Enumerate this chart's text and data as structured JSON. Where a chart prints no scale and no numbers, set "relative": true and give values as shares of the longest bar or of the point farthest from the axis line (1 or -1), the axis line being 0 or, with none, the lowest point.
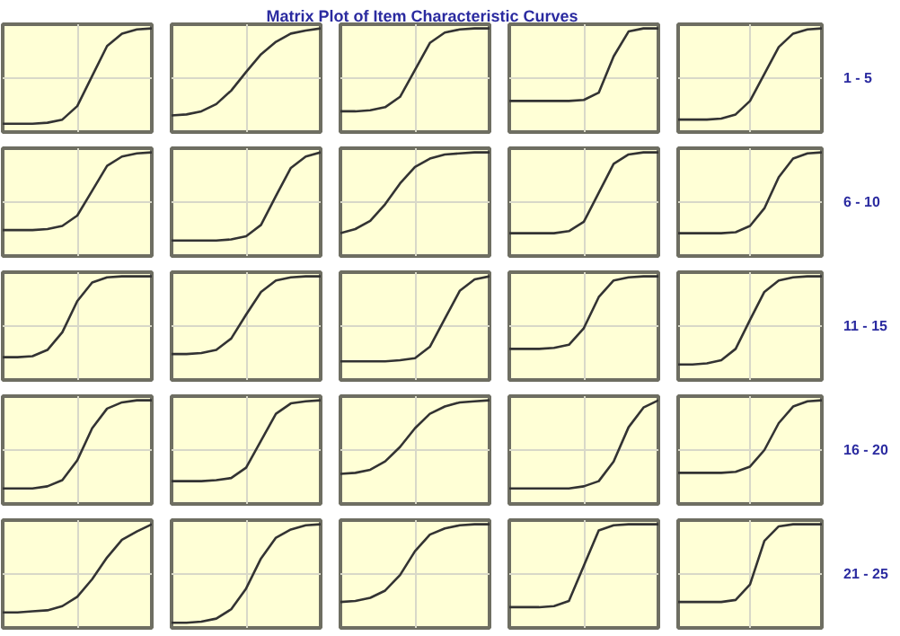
{
  "chart_data": [
    {
      "type": "line",
      "relative": true,
      "grid": true,
      "categories": [
        null,
        null,
        null,
        null,
        null,
        null,
        null,
        null,
        null,
        null,
        null
      ],
      "series": [
        {
          "color": "#333333",
          "values": [
            0.08,
            0.08,
            0.08,
            0.09,
            0.12,
            0.25,
            0.54,
            0.83,
            0.95,
            0.99,
            1
          ]
        }
      ]
    },
    {
      "type": "line",
      "relative": true,
      "grid": true,
      "categories": [
        null,
        null,
        null,
        null,
        null,
        null,
        null,
        null,
        null,
        null,
        null
      ],
      "series": [
        {
          "color": "#333333",
          "values": [
            0.16,
            0.17,
            0.2,
            0.27,
            0.4,
            0.58,
            0.75,
            0.87,
            0.95,
            0.98,
            1
          ]
        }
      ]
    },
    {
      "type": "line",
      "relative": true,
      "grid": true,
      "title": "Matrix Plot of Item Characteristic Curves",
      "categories": [
        null,
        null,
        null,
        null,
        null,
        null,
        null,
        null,
        null,
        null,
        null
      ],
      "series": [
        {
          "color": "#333333",
          "values": [
            0.2,
            0.2,
            0.21,
            0.24,
            0.34,
            0.6,
            0.86,
            0.96,
            0.99,
            1,
            1
          ]
        }
      ]
    },
    {
      "type": "line",
      "relative": true,
      "grid": true,
      "categories": [
        null,
        null,
        null,
        null,
        null,
        null,
        null,
        null,
        null,
        null,
        null
      ],
      "series": [
        {
          "color": "#333333",
          "values": [
            0.3,
            0.3,
            0.3,
            0.3,
            0.3,
            0.31,
            0.38,
            0.73,
            0.97,
            1,
            1
          ]
        }
      ]
    },
    {
      "type": "line",
      "relative": true,
      "grid": true,
      "annotations": [
        "1 - 5"
      ],
      "categories": [
        null,
        null,
        null,
        null,
        null,
        null,
        null,
        null,
        null,
        null,
        null
      ],
      "series": [
        {
          "color": "#333333",
          "values": [
            0.12,
            0.12,
            0.12,
            0.13,
            0.17,
            0.3,
            0.56,
            0.82,
            0.95,
            0.99,
            1
          ]
        }
      ]
    },
    {
      "type": "line",
      "relative": true,
      "grid": true,
      "categories": [
        null,
        null,
        null,
        null,
        null,
        null,
        null,
        null,
        null,
        null,
        null
      ],
      "series": [
        {
          "color": "#333333",
          "values": [
            0.25,
            0.25,
            0.25,
            0.26,
            0.29,
            0.39,
            0.63,
            0.87,
            0.96,
            0.99,
            1
          ]
        }
      ]
    },
    {
      "type": "line",
      "relative": true,
      "grid": true,
      "categories": [
        null,
        null,
        null,
        null,
        null,
        null,
        null,
        null,
        null,
        null,
        null
      ],
      "series": [
        {
          "color": "#333333",
          "values": [
            0.15,
            0.15,
            0.15,
            0.15,
            0.16,
            0.19,
            0.3,
            0.58,
            0.85,
            0.96,
            1
          ]
        }
      ]
    },
    {
      "type": "line",
      "relative": true,
      "grid": true,
      "categories": [
        null,
        null,
        null,
        null,
        null,
        null,
        null,
        null,
        null,
        null,
        null
      ],
      "series": [
        {
          "color": "#333333",
          "values": [
            0.22,
            0.26,
            0.34,
            0.5,
            0.7,
            0.86,
            0.94,
            0.98,
            0.99,
            1,
            1
          ]
        }
      ]
    },
    {
      "type": "line",
      "relative": true,
      "grid": true,
      "categories": [
        null,
        null,
        null,
        null,
        null,
        null,
        null,
        null,
        null,
        null,
        null
      ],
      "series": [
        {
          "color": "#333333",
          "values": [
            0.22,
            0.22,
            0.22,
            0.22,
            0.24,
            0.33,
            0.61,
            0.89,
            0.98,
            1,
            1
          ]
        }
      ]
    },
    {
      "type": "line",
      "relative": true,
      "grid": true,
      "annotations": [
        "6 - 10"
      ],
      "categories": [
        null,
        null,
        null,
        null,
        null,
        null,
        null,
        null,
        null,
        null,
        null
      ],
      "series": [
        {
          "color": "#333333",
          "values": [
            0.22,
            0.22,
            0.22,
            0.22,
            0.23,
            0.29,
            0.46,
            0.76,
            0.94,
            0.99,
            1
          ]
        }
      ]
    },
    {
      "type": "line",
      "relative": true,
      "grid": true,
      "categories": [
        null,
        null,
        null,
        null,
        null,
        null,
        null,
        null,
        null,
        null,
        null
      ],
      "series": [
        {
          "color": "#333333",
          "values": [
            0.22,
            0.22,
            0.23,
            0.29,
            0.46,
            0.76,
            0.94,
            0.99,
            1,
            1,
            1
          ]
        }
      ]
    },
    {
      "type": "line",
      "relative": true,
      "grid": true,
      "categories": [
        null,
        null,
        null,
        null,
        null,
        null,
        null,
        null,
        null,
        null,
        null
      ],
      "series": [
        {
          "color": "#333333",
          "values": [
            0.25,
            0.25,
            0.26,
            0.29,
            0.4,
            0.63,
            0.85,
            0.96,
            0.99,
            1,
            1
          ]
        }
      ]
    },
    {
      "type": "line",
      "relative": true,
      "grid": true,
      "categories": [
        null,
        null,
        null,
        null,
        null,
        null,
        null,
        null,
        null,
        null,
        null
      ],
      "series": [
        {
          "color": "#333333",
          "values": [
            0.18,
            0.18,
            0.18,
            0.18,
            0.19,
            0.21,
            0.32,
            0.59,
            0.86,
            0.97,
            1
          ]
        }
      ]
    },
    {
      "type": "line",
      "relative": true,
      "grid": true,
      "categories": [
        null,
        null,
        null,
        null,
        null,
        null,
        null,
        null,
        null,
        null,
        null
      ],
      "series": [
        {
          "color": "#333333",
          "values": [
            0.3,
            0.3,
            0.3,
            0.31,
            0.34,
            0.5,
            0.8,
            0.96,
            0.99,
            1,
            1
          ]
        }
      ]
    },
    {
      "type": "line",
      "relative": true,
      "grid": true,
      "annotations": [
        "11 - 15"
      ],
      "categories": [
        null,
        null,
        null,
        null,
        null,
        null,
        null,
        null,
        null,
        null,
        null
      ],
      "series": [
        {
          "color": "#333333",
          "values": [
            0.15,
            0.15,
            0.16,
            0.19,
            0.3,
            0.58,
            0.85,
            0.96,
            0.99,
            1,
            1
          ]
        }
      ]
    },
    {
      "type": "line",
      "relative": true,
      "grid": true,
      "categories": [
        null,
        null,
        null,
        null,
        null,
        null,
        null,
        null,
        null,
        null,
        null
      ],
      "series": [
        {
          "color": "#333333",
          "values": [
            0.15,
            0.15,
            0.15,
            0.17,
            0.23,
            0.42,
            0.73,
            0.92,
            0.98,
            1,
            1
          ]
        }
      ]
    },
    {
      "type": "line",
      "relative": true,
      "grid": true,
      "categories": [
        null,
        null,
        null,
        null,
        null,
        null,
        null,
        null,
        null,
        null,
        null
      ],
      "series": [
        {
          "color": "#333333",
          "values": [
            0.22,
            0.22,
            0.22,
            0.23,
            0.25,
            0.35,
            0.61,
            0.87,
            0.97,
            0.99,
            1
          ]
        }
      ]
    },
    {
      "type": "line",
      "relative": true,
      "grid": true,
      "categories": [
        null,
        null,
        null,
        null,
        null,
        null,
        null,
        null,
        null,
        null,
        null
      ],
      "series": [
        {
          "color": "#333333",
          "values": [
            0.29,
            0.3,
            0.33,
            0.41,
            0.55,
            0.73,
            0.87,
            0.94,
            0.98,
            0.99,
            1
          ]
        }
      ]
    },
    {
      "type": "line",
      "relative": true,
      "grid": true,
      "categories": [
        null,
        null,
        null,
        null,
        null,
        null,
        null,
        null,
        null,
        null,
        null
      ],
      "series": [
        {
          "color": "#333333",
          "values": [
            0.15,
            0.15,
            0.15,
            0.15,
            0.15,
            0.17,
            0.22,
            0.41,
            0.74,
            0.93,
            1
          ]
        }
      ]
    },
    {
      "type": "line",
      "relative": true,
      "grid": true,
      "annotations": [
        "16 - 20"
      ],
      "categories": [
        null,
        null,
        null,
        null,
        null,
        null,
        null,
        null,
        null,
        null,
        null
      ],
      "series": [
        {
          "color": "#333333",
          "values": [
            0.3,
            0.3,
            0.3,
            0.3,
            0.31,
            0.36,
            0.52,
            0.78,
            0.94,
            0.99,
            1
          ]
        }
      ]
    },
    {
      "type": "line",
      "relative": true,
      "grid": true,
      "categories": [
        null,
        null,
        null,
        null,
        null,
        null,
        null,
        null,
        null,
        null,
        null
      ],
      "series": [
        {
          "color": "#333333",
          "values": [
            0.15,
            0.15,
            0.16,
            0.17,
            0.21,
            0.3,
            0.47,
            0.68,
            0.85,
            0.93,
            1
          ]
        }
      ]
    },
    {
      "type": "line",
      "relative": true,
      "grid": true,
      "categories": [
        null,
        null,
        null,
        null,
        null,
        null,
        null,
        null,
        null,
        null,
        null
      ],
      "series": [
        {
          "color": "#333333",
          "values": [
            0.05,
            0.05,
            0.06,
            0.09,
            0.18,
            0.38,
            0.67,
            0.87,
            0.95,
            0.99,
            1
          ]
        }
      ]
    },
    {
      "type": "line",
      "relative": true,
      "grid": true,
      "categories": [
        null,
        null,
        null,
        null,
        null,
        null,
        null,
        null,
        null,
        null,
        null
      ],
      "series": [
        {
          "color": "#333333",
          "values": [
            0.25,
            0.26,
            0.29,
            0.36,
            0.51,
            0.74,
            0.9,
            0.96,
            0.99,
            1,
            1
          ]
        }
      ]
    },
    {
      "type": "line",
      "relative": true,
      "grid": true,
      "categories": [
        null,
        null,
        null,
        null,
        null,
        null,
        null,
        null,
        null,
        null,
        null
      ],
      "series": [
        {
          "color": "#333333",
          "values": [
            0.2,
            0.2,
            0.2,
            0.21,
            0.26,
            0.6,
            0.94,
            0.99,
            1,
            1,
            1
          ]
        }
      ]
    },
    {
      "type": "line",
      "relative": true,
      "grid": true,
      "annotations": [
        "21 - 25"
      ],
      "categories": [
        null,
        null,
        null,
        null,
        null,
        null,
        null,
        null,
        null,
        null,
        null
      ],
      "series": [
        {
          "color": "#333333",
          "values": [
            0.25,
            0.25,
            0.25,
            0.25,
            0.27,
            0.42,
            0.84,
            0.98,
            1,
            1,
            1
          ]
        }
      ]
    }
  ]
}
